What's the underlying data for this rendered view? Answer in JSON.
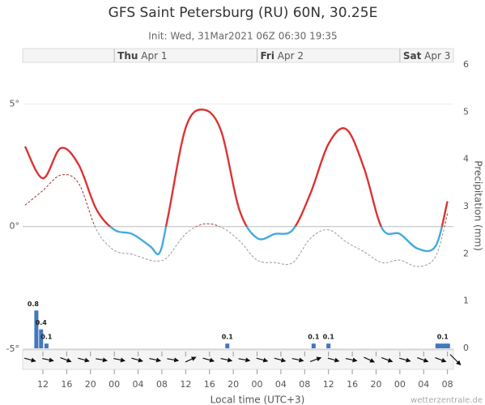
{
  "chart_data": {
    "type": "meteogram",
    "title": "GFS Saint Petersburg (RU) 60N, 30.25E",
    "subtitle": "Init: Wed, 31Mar2021 06Z 06:30 19:35",
    "x_label": "Local time (UTC+3)",
    "y2_label": "Precipitation (mm)",
    "credit": "wetterzentrale.de",
    "xlim": [
      -0.4,
      72
    ],
    "xticks": [
      {
        "value": 3,
        "label": "12"
      },
      {
        "value": 7,
        "label": "16"
      },
      {
        "value": 11,
        "label": "20"
      },
      {
        "value": 15,
        "label": "00"
      },
      {
        "value": 19,
        "label": "04"
      },
      {
        "value": 23,
        "label": "08"
      },
      {
        "value": 27,
        "label": "12"
      },
      {
        "value": 31,
        "label": "16"
      },
      {
        "value": 35,
        "label": "20"
      },
      {
        "value": 39,
        "label": "00"
      },
      {
        "value": 43,
        "label": "04"
      },
      {
        "value": 47,
        "label": "08"
      },
      {
        "value": 51,
        "label": "12"
      },
      {
        "value": 55,
        "label": "16"
      },
      {
        "value": 59,
        "label": "20"
      },
      {
        "value": 63,
        "label": "00"
      },
      {
        "value": 67,
        "label": "04"
      },
      {
        "value": 71,
        "label": "08"
      }
    ],
    "days": [
      {
        "day": "Thu",
        "date": "Apr 1",
        "x": 15
      },
      {
        "day": "Fri",
        "date": "Apr 2",
        "x": 39
      },
      {
        "day": "Sat",
        "date": "Apr 3",
        "x": 63
      }
    ],
    "ylim": [
      -5,
      6.7
    ],
    "yticks": [
      {
        "value": 5,
        "label": "5°"
      },
      {
        "value": 0,
        "label": "0°"
      },
      {
        "value": -5,
        "label": "-5°"
      }
    ],
    "y2lim": [
      0,
      6
    ],
    "y2ticks": [
      0,
      1,
      2,
      3,
      4,
      5,
      6
    ],
    "x": [
      0,
      3,
      6,
      9,
      12,
      15,
      18,
      21,
      22.6,
      24,
      27,
      30,
      33,
      36,
      39,
      42,
      45,
      48,
      51,
      54,
      57,
      60,
      63,
      66,
      69,
      71
    ],
    "series": [
      {
        "name": "Temperature",
        "color": "#dd3333",
        "color_below": "#44aadd",
        "dash": false,
        "values": [
          3.27,
          1.97,
          3.2,
          2.53,
          0.7,
          -0.13,
          -0.3,
          -0.8,
          -1.07,
          0.37,
          4.03,
          4.77,
          3.87,
          0.7,
          -0.47,
          -0.3,
          -0.13,
          1.37,
          3.37,
          3.97,
          2.37,
          -0.07,
          -0.3,
          -0.9,
          -0.8,
          1.03
        ]
      },
      {
        "name": "Dew point",
        "color": "#993333",
        "color_below": "#999999",
        "dash": true,
        "values": [
          0.87,
          1.47,
          2.1,
          1.77,
          -0.13,
          -0.97,
          -1.13,
          -1.37,
          -1.4,
          -1.23,
          -0.3,
          0.1,
          -0.03,
          -0.57,
          -1.37,
          -1.47,
          -1.47,
          -0.47,
          -0.13,
          -0.63,
          -1.03,
          -1.47,
          -1.37,
          -1.63,
          -1.23,
          0.53
        ]
      },
      {
        "name": "Precipitation",
        "axis": "y2",
        "color": "#4477bb",
        "x": [
          1.9,
          2.7,
          3.6,
          34,
          48.5,
          51,
          70.2
        ],
        "values": [
          0.8,
          0.4,
          0.1,
          0.1,
          0.1,
          0.1,
          0.1
        ]
      }
    ],
    "wind": {
      "x": [
        0,
        3,
        6,
        9,
        12,
        15,
        18,
        21,
        24,
        27,
        30,
        33,
        36,
        39,
        42,
        45,
        48,
        51,
        54,
        57,
        60,
        63,
        66,
        69,
        71.5
      ],
      "angle": [
        15,
        12,
        20,
        15,
        10,
        12,
        15,
        12,
        10,
        -25,
        15,
        12,
        10,
        15,
        15,
        12,
        -20,
        15,
        12,
        25,
        20,
        15,
        20,
        20,
        45
      ]
    }
  }
}
